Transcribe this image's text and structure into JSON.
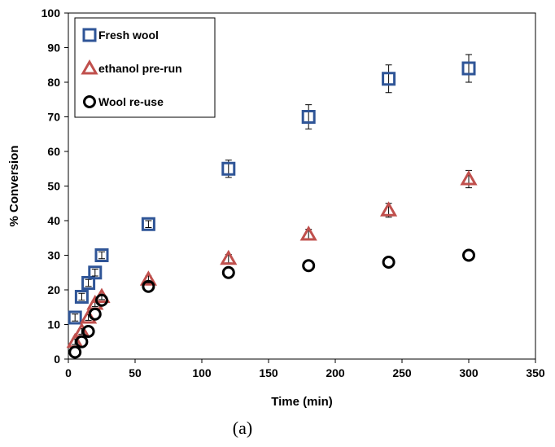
{
  "chart_data": {
    "type": "scatter",
    "xlabel": "Time (min)",
    "ylabel": "% Conversion",
    "xlim": [
      0,
      350
    ],
    "ylim": [
      0,
      100
    ],
    "x_ticks": [
      0,
      50,
      100,
      150,
      200,
      250,
      300,
      350
    ],
    "y_ticks": [
      0,
      10,
      20,
      30,
      40,
      50,
      60,
      70,
      80,
      90,
      100
    ],
    "grid": false,
    "legend_position": "top-left",
    "caption": "(a)",
    "series": [
      {
        "name": "Fresh wool",
        "marker": "square",
        "color": "#2f5597",
        "x": [
          5,
          10,
          15,
          20,
          25,
          60,
          120,
          180,
          240,
          300
        ],
        "y": [
          12,
          18,
          22,
          25,
          30,
          39,
          55,
          70,
          81,
          84
        ],
        "err": [
          1,
          1,
          1,
          1,
          1,
          1,
          2.5,
          3.5,
          4,
          4
        ]
      },
      {
        "name": "ethanol pre-run",
        "marker": "triangle",
        "color": "#c0504d",
        "x": [
          5,
          10,
          15,
          20,
          25,
          60,
          120,
          180,
          240,
          300
        ],
        "y": [
          5,
          8,
          12,
          16,
          18,
          23,
          29,
          36,
          43,
          52
        ],
        "err": [
          0.8,
          0.8,
          0.8,
          0.8,
          0.8,
          1,
          1.2,
          1.5,
          2,
          2.5
        ]
      },
      {
        "name": "Wool re-use",
        "marker": "circle",
        "color": "#000000",
        "x": [
          5,
          10,
          15,
          20,
          25,
          60,
          120,
          180,
          240,
          300
        ],
        "y": [
          2,
          5,
          8,
          13,
          17,
          21,
          25,
          27,
          28,
          30
        ],
        "err": [
          0,
          0,
          0,
          0,
          0,
          0,
          0,
          0,
          0,
          0
        ]
      }
    ]
  }
}
